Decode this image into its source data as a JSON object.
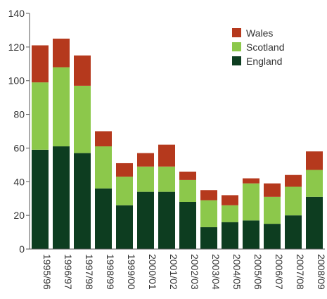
{
  "chart_data": {
    "type": "bar",
    "stacked": true,
    "categories": [
      "1995/96",
      "1996/97",
      "1997/98",
      "1998/99",
      "1999/00",
      "2000/01",
      "2001/02",
      "2002/03",
      "2003/04",
      "2004/05",
      "2005/06",
      "2006/07",
      "2007/08",
      "2008/09"
    ],
    "series": [
      {
        "name": "England",
        "color": "#0d3d20",
        "values": [
          59,
          61,
          57,
          36,
          26,
          34,
          34,
          28,
          13,
          16,
          17,
          15,
          20,
          31
        ]
      },
      {
        "name": "Scotland",
        "color": "#8cc84b",
        "values": [
          40,
          47,
          40,
          25,
          17,
          15,
          15,
          13,
          16,
          10,
          22,
          16,
          17,
          16
        ]
      },
      {
        "name": "Wales",
        "color": "#b5391d",
        "values": [
          22,
          17,
          18,
          9,
          8,
          8,
          13,
          5,
          6,
          6,
          3,
          8,
          7,
          11
        ]
      }
    ],
    "legend_order": [
      "Wales",
      "Scotland",
      "England"
    ],
    "legend_position": "top-right",
    "title": "",
    "xlabel": "",
    "ylabel": "",
    "ylim": [
      0,
      140
    ],
    "yticks": [
      0,
      20,
      40,
      60,
      80,
      100,
      120,
      140
    ],
    "grid": false
  }
}
